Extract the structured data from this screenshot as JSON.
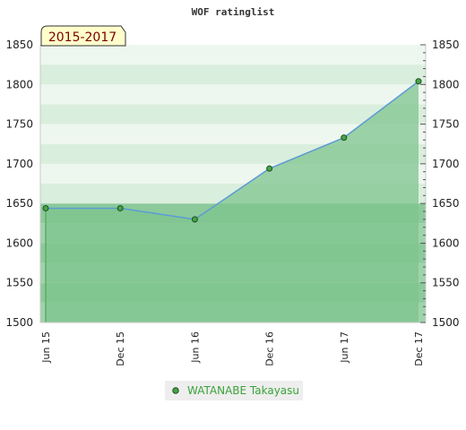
{
  "chart_data": {
    "type": "area",
    "title": "WOF ratinglist",
    "period_label": "2015-2017",
    "x": [
      "Jun 15",
      "Dec 15",
      "Jun 16",
      "Dec 16",
      "Jun 17",
      "Dec 17"
    ],
    "series": [
      {
        "name": "WATANABE Takayasu",
        "values": [
          1644,
          1644,
          1630,
          1694,
          1733,
          1804
        ],
        "color": "#3aa33a"
      }
    ],
    "ylim": [
      1500,
      1850
    ],
    "yticks": [
      1500,
      1550,
      1600,
      1650,
      1700,
      1750,
      1800,
      1850
    ],
    "axes": "left and right",
    "grid": "alternating green bands",
    "legend": "bottom-center"
  },
  "colors": {
    "fill": "#7dc48e",
    "line": "#5b9bd5",
    "marker": "#2e8b2e",
    "badge_bg": "#ffffcc",
    "badge_text": "#7a0000",
    "legend_text": "#3aa33a",
    "legend_bg": "#eeeeee"
  }
}
